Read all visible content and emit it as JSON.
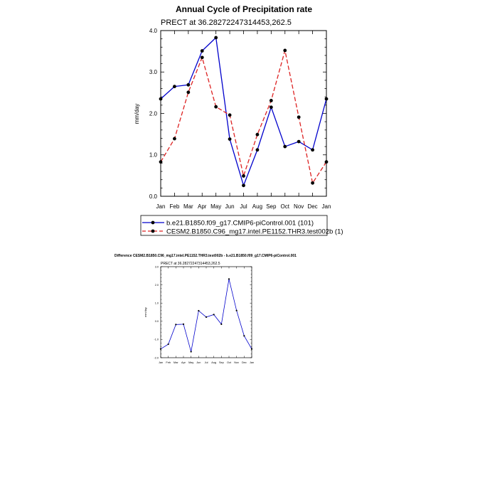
{
  "chart_data": [
    {
      "type": "line",
      "title": "Annual Cycle of Precipitation rate",
      "subtitle": "PRECT at 36.28272247314453,262.5",
      "xlabel": "",
      "ylabel": "mm/day",
      "ylim": [
        0.0,
        4.0
      ],
      "yticks": [
        "0.0",
        "1.0",
        "2.0",
        "3.0",
        "4.0"
      ],
      "yticks_values": [
        0,
        1,
        2,
        3,
        4
      ],
      "categories": [
        "Jan",
        "Feb",
        "Mar",
        "Apr",
        "May",
        "Jun",
        "Jul",
        "Aug",
        "Sep",
        "Oct",
        "Nov",
        "Dec",
        "Jan"
      ],
      "legend_position": "bottom-center",
      "series": [
        {
          "name": "b.e21.B1850.f09_g17.CMIP6-piControl.001 (101)",
          "color": "#0000cc",
          "style": "solid",
          "values": [
            2.35,
            2.65,
            2.69,
            3.51,
            3.83,
            1.38,
            0.26,
            1.12,
            2.15,
            1.2,
            1.32,
            1.12,
            2.35
          ]
        },
        {
          "name": "CESM2.B1850.C96_mg17.intel.PE1152.THR3.test002b (1)",
          "color": "#dd2222",
          "style": "dashed",
          "values": [
            0.83,
            1.39,
            2.51,
            3.35,
            2.16,
            1.96,
            0.49,
            1.49,
            2.31,
            3.52,
            1.91,
            0.32,
            0.83
          ]
        }
      ]
    },
    {
      "type": "line",
      "title": "Difference CESM2.B1850.C96_mg17.intel.PE1152.THR3.test002b - b.e21.B1850.f09_g17.CMIP6-piControl.001",
      "subtitle": "PRECT at 36.28272247314453,262.5",
      "xlabel": "",
      "ylabel": "mm/day",
      "ylim": [
        -2.0,
        3.0
      ],
      "yticks": [
        "-2.0",
        "-1.0",
        "0.0",
        "1.0",
        "2.0",
        "3.0"
      ],
      "yticks_values": [
        -2,
        -1,
        0,
        1,
        2,
        3
      ],
      "categories": [
        "Jan",
        "Feb",
        "Mar",
        "Apr",
        "May",
        "Jun",
        "Jul",
        "Aug",
        "Sep",
        "Oct",
        "Nov",
        "Dec",
        "Jan"
      ],
      "series": [
        {
          "name": "difference",
          "color": "#0000cc",
          "style": "solid",
          "values": [
            -1.52,
            -1.26,
            -0.18,
            -0.16,
            -1.67,
            0.58,
            0.23,
            0.37,
            -0.16,
            2.32,
            0.59,
            -0.8,
            -1.52
          ]
        }
      ]
    }
  ]
}
